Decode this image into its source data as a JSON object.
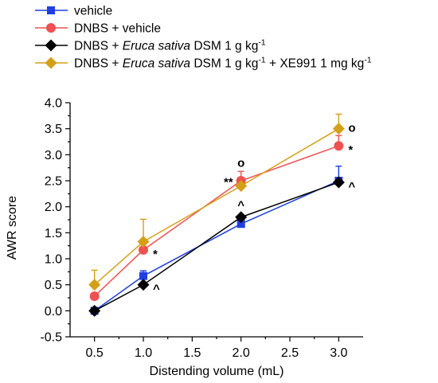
{
  "chart_data": {
    "type": "line",
    "title": "",
    "xlabel": "Distending volume (mL)",
    "ylabel": "AWR score",
    "xlim": [
      0.25,
      3.25
    ],
    "ylim": [
      -0.5,
      4.0
    ],
    "xticks": [
      "0.5",
      "1.0",
      "1.5",
      "2.0",
      "2.5",
      "3.0"
    ],
    "yticks": [
      "-0.5",
      "0.0",
      "0.5",
      "1.0",
      "1.5",
      "2.0",
      "2.5",
      "3.0",
      "3.5",
      "4.0"
    ],
    "legend_position": "top-left",
    "series": [
      {
        "name": "vehicle",
        "legend_parts": [
          {
            "t": "vehicle",
            "i": false
          }
        ],
        "color": "#1f3fe0",
        "marker": "square",
        "x": [
          0.5,
          1.0,
          2.0,
          3.0
        ],
        "values": [
          0.0,
          0.67,
          1.67,
          2.5
        ],
        "error": [
          0.0,
          0.1,
          0.0,
          0.28
        ],
        "annotations": []
      },
      {
        "name": "DNBS + vehicle",
        "legend_parts": [
          {
            "t": "DNBS + vehicle",
            "i": false
          }
        ],
        "color": "#f05050",
        "marker": "circle",
        "x": [
          0.5,
          1.0,
          2.0,
          3.0
        ],
        "values": [
          0.28,
          1.17,
          2.5,
          3.17
        ],
        "error": [
          0.0,
          0.0,
          0.18,
          0.2
        ],
        "annotations": [
          {
            "x": 1.0,
            "text": "*",
            "side": "right"
          },
          {
            "x": 3.0,
            "text": "*",
            "side": "right"
          }
        ]
      },
      {
        "name": "DNBS + Eruca sativa DSM 1 g kg-1",
        "legend_parts": [
          {
            "t": "DNBS + ",
            "i": false
          },
          {
            "t": "Eruca sativa",
            "i": true
          },
          {
            "t": " DSM 1 g kg",
            "i": false
          },
          {
            "t": "-1",
            "sup": true
          }
        ],
        "color": "#000000",
        "marker": "diamond",
        "x": [
          0.5,
          1.0,
          2.0,
          3.0
        ],
        "values": [
          0.0,
          0.5,
          1.8,
          2.47
        ],
        "error": [
          0.0,
          0.0,
          0.0,
          0.0
        ],
        "annotations": [
          {
            "x": 1.0,
            "text": "^",
            "side": "right"
          },
          {
            "x": 2.0,
            "text": "^",
            "side": "above"
          },
          {
            "x": 3.0,
            "text": "^",
            "side": "right"
          }
        ]
      },
      {
        "name": "DNBS + Eruca sativa DSM 1 g kg-1 + XE991 1 mg kg-1",
        "legend_parts": [
          {
            "t": "DNBS + ",
            "i": false
          },
          {
            "t": "Eruca sativa",
            "i": true
          },
          {
            "t": " DSM 1 g kg",
            "i": false
          },
          {
            "t": "-1",
            "sup": true
          },
          {
            "t": " + XE991 1 mg kg",
            "i": false
          },
          {
            "t": "-1",
            "sup": true
          }
        ],
        "color": "#d4a017",
        "marker": "diamond",
        "x": [
          0.5,
          1.0,
          2.0,
          3.0
        ],
        "values": [
          0.5,
          1.33,
          2.4,
          3.5
        ],
        "error": [
          0.28,
          0.43,
          0.0,
          0.28
        ],
        "annotations": [
          {
            "x": 2.0,
            "text": "**",
            "side": "left"
          },
          {
            "x": 2.0,
            "text": "o",
            "side": "above-high"
          },
          {
            "x": 3.0,
            "text": "o",
            "side": "right-high"
          }
        ]
      }
    ]
  }
}
